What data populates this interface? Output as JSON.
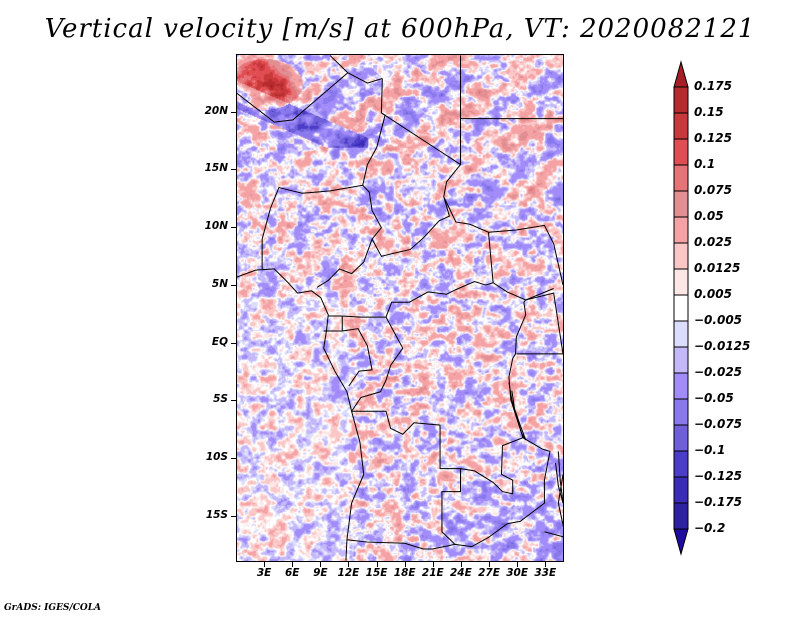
{
  "chart_data": {
    "type": "heatmap",
    "title": "Vertical velocity [m/s] at 600hPa, VT: 2020082121",
    "variable": "Vertical velocity",
    "units": "m/s",
    "level": "600hPa",
    "valid_time": "2020082121",
    "xlabel": "",
    "ylabel": "",
    "x_range_deg_east": [
      0,
      35
    ],
    "y_range_deg_north": [
      -19,
      25
    ],
    "x_ticks": [
      "3E",
      "6E",
      "9E",
      "12E",
      "15E",
      "18E",
      "21E",
      "24E",
      "27E",
      "30E",
      "33E"
    ],
    "x_tick_values": [
      3,
      6,
      9,
      12,
      15,
      18,
      21,
      24,
      27,
      30,
      33
    ],
    "y_ticks": [
      "20N",
      "15N",
      "10N",
      "5N",
      "EQ",
      "5S",
      "10S",
      "15S"
    ],
    "y_tick_values": [
      20,
      15,
      10,
      5,
      0,
      -5,
      -10,
      -15
    ],
    "colorbar": {
      "levels": [
        "0.175",
        "0.15",
        "0.125",
        "0.1",
        "0.075",
        "0.05",
        "0.025",
        "0.0125",
        "0.005",
        "-0.005",
        "-0.0125",
        "-0.025",
        "-0.05",
        "-0.075",
        "-0.1",
        "-0.125",
        "-0.175",
        "-0.2"
      ],
      "level_values": [
        0.175,
        0.15,
        0.125,
        0.1,
        0.075,
        0.05,
        0.025,
        0.0125,
        0.005,
        -0.005,
        -0.0125,
        -0.025,
        -0.05,
        -0.075,
        -0.1,
        -0.125,
        -0.175,
        -0.2
      ],
      "colors": [
        "#a52026",
        "#b62b2e",
        "#c9393b",
        "#e04d52",
        "#e67378",
        "#e28f93",
        "#f5a2a4",
        "#fac6c6",
        "#fde6e6",
        "#ffffff",
        "#dcdcfc",
        "#c4b8fb",
        "#a18cf9",
        "#8979ec",
        "#6f5fd9",
        "#4c3dc9",
        "#3b2cb8",
        "#2e22a3",
        "#1f0ba0"
      ],
      "extend": "both",
      "orientation": "vertical",
      "placement": "right"
    },
    "region": "Central Africa",
    "field_description": "Noisy mixed positive/negative vertical velocity with strong positive (red) over northwest Sahara near 22N 2E, negative (blue) bands across northern Sahara and southern Atlantic; mostly weak values elsewhere."
  },
  "footer": {
    "credit": "GrADS: IGES/COLA"
  }
}
